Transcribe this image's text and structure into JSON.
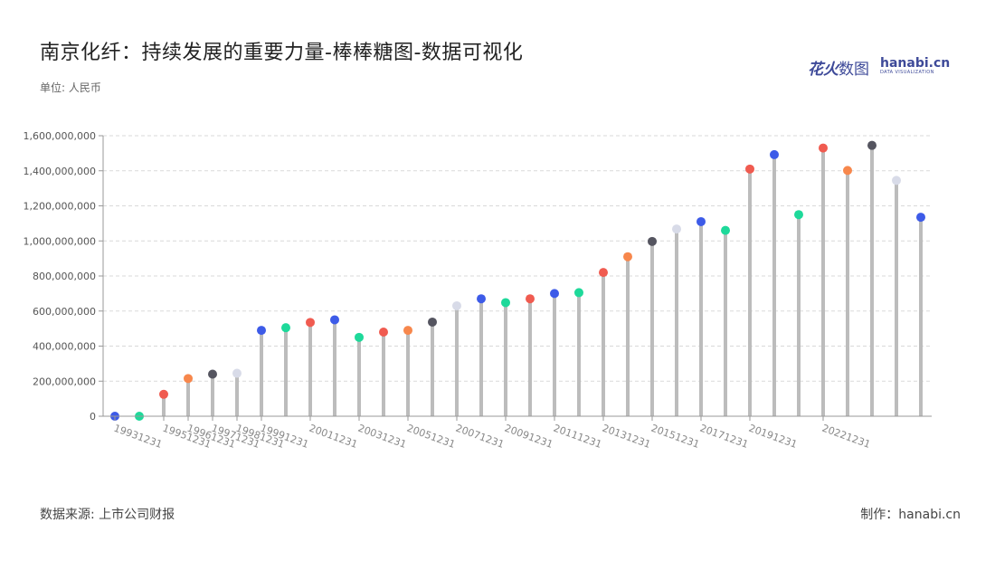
{
  "header": {
    "title": "南京化纤：持续发展的重要力量-棒棒糖图-数据可视化",
    "unit": "单位: 人民币"
  },
  "brand": {
    "name_cn_1": "花火",
    "name_cn_2": "数图",
    "name_en": "hanabi.cn",
    "tagline": "DATA VISUALIZATION"
  },
  "footer": {
    "source": "数据来源: 上市公司财报",
    "credit": "制作：hanabi.cn"
  },
  "chart_data": {
    "type": "lollipop",
    "ylim": [
      0,
      1600000000
    ],
    "yticks": [
      "0",
      "200,000,000",
      "400,000,000",
      "600,000,000",
      "800,000,000",
      "1,000,000,000",
      "1,200,000,000",
      "1,400,000,000",
      "1,600,000,000"
    ],
    "grid": true,
    "x": [
      "19931231",
      "19941231",
      "19951231",
      "19961231",
      "19971231",
      "19981231",
      "19991231",
      "20001231",
      "20011231",
      "20021231",
      "20031231",
      "20041231",
      "20051231",
      "20061231",
      "20071231",
      "20081231",
      "20091231",
      "20101231",
      "20111231",
      "20121231",
      "20131231",
      "20141231",
      "20151231",
      "20161231",
      "20171231",
      "20181231",
      "20191231",
      "20201231",
      "20211231",
      "20221231",
      "20231231",
      "20241231",
      "20251231",
      "20261231"
    ],
    "xtick_labels": [
      "19931231",
      "19951231",
      "19961231",
      "19971231",
      "19981231",
      "19991231",
      "20011231",
      "20031231",
      "20051231",
      "20071231",
      "20091231",
      "20111231",
      "20131231",
      "20151231",
      "20171231",
      "20191231",
      "20221231"
    ],
    "points": [
      {
        "value": 0,
        "color": "#3d5be8"
      },
      {
        "value": 0,
        "color": "#1ed99a"
      },
      {
        "value": 125000000,
        "color": "#f05b50"
      },
      {
        "value": 215000000,
        "color": "#f7874c"
      },
      {
        "value": 240000000,
        "color": "#555560"
      },
      {
        "value": 245000000,
        "color": "#d8dbe8"
      },
      {
        "value": 490000000,
        "color": "#3d5be8"
      },
      {
        "value": 505000000,
        "color": "#1ed99a"
      },
      {
        "value": 535000000,
        "color": "#f05b50"
      },
      {
        "value": 550000000,
        "color": "#3d5be8"
      },
      {
        "value": 450000000,
        "color": "#1ed99a"
      },
      {
        "value": 480000000,
        "color": "#f05b50"
      },
      {
        "value": 490000000,
        "color": "#f7874c"
      },
      {
        "value": 537000000,
        "color": "#555560"
      },
      {
        "value": 630000000,
        "color": "#d8dbe8"
      },
      {
        "value": 670000000,
        "color": "#3d5be8"
      },
      {
        "value": 648000000,
        "color": "#1ed99a"
      },
      {
        "value": 670000000,
        "color": "#f05b50"
      },
      {
        "value": 700000000,
        "color": "#3d5be8"
      },
      {
        "value": 705000000,
        "color": "#1ed99a"
      },
      {
        "value": 820000000,
        "color": "#f05b50"
      },
      {
        "value": 910000000,
        "color": "#f7874c"
      },
      {
        "value": 997000000,
        "color": "#555560"
      },
      {
        "value": 1068000000,
        "color": "#d8dbe8"
      },
      {
        "value": 1110000000,
        "color": "#3d5be8"
      },
      {
        "value": 1060000000,
        "color": "#1ed99a"
      },
      {
        "value": 1410000000,
        "color": "#f05b50"
      },
      {
        "value": 1492000000,
        "color": "#3d5be8"
      },
      {
        "value": 1150000000,
        "color": "#1ed99a"
      },
      {
        "value": 1530000000,
        "color": "#f05b50"
      },
      {
        "value": 1402000000,
        "color": "#f7874c"
      },
      {
        "value": 1545000000,
        "color": "#555560"
      },
      {
        "value": 1345000000,
        "color": "#d8dbe8"
      },
      {
        "value": 1135000000,
        "color": "#3d5be8"
      }
    ],
    "stem_color": "#bcbcbc"
  }
}
